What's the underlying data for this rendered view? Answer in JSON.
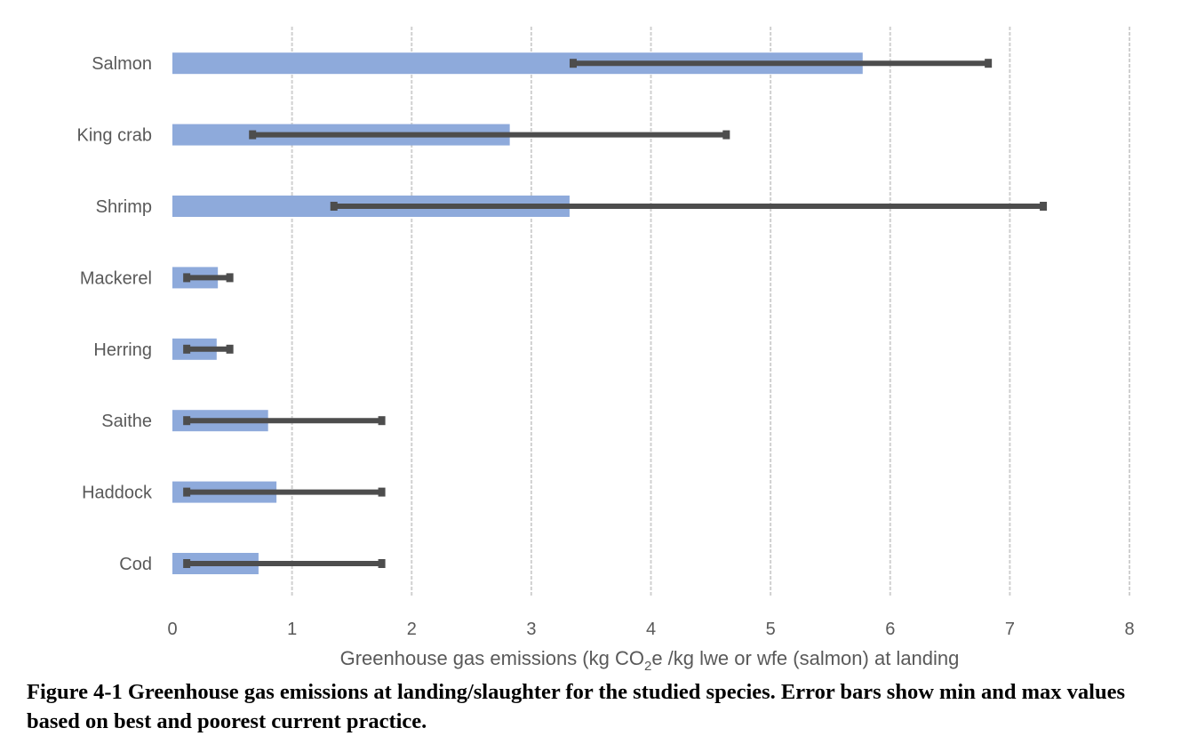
{
  "chart_data": {
    "type": "bar",
    "orientation": "horizontal",
    "categories": [
      "Salmon",
      "King crab",
      "Shrimp",
      "Mackerel",
      "Herring",
      "Saithe",
      "Haddock",
      "Cod"
    ],
    "values": [
      5.77,
      2.82,
      3.32,
      0.38,
      0.37,
      0.8,
      0.87,
      0.72
    ],
    "error_min": [
      3.35,
      0.67,
      1.35,
      0.12,
      0.12,
      0.12,
      0.12,
      0.12
    ],
    "error_max": [
      6.82,
      4.63,
      7.28,
      0.48,
      0.48,
      1.75,
      1.75,
      1.75
    ],
    "xlabel_prefix": "Greenhouse gas emissions (kg CO",
    "xlabel_subscript": "2",
    "xlabel_suffix": "e /kg lwe or wfe (salmon) at landing",
    "xlim": [
      0,
      8
    ],
    "xticks": [
      "0",
      "1",
      "2",
      "3",
      "4",
      "5",
      "6",
      "7",
      "8"
    ],
    "grid": "vertical, dashed",
    "legend": "none",
    "bar_color": "#8eaadb",
    "error_bar_color": "#4d4d4d",
    "grid_color": "#d0d0d0"
  },
  "caption": "Figure 4-1 Greenhouse gas emissions at landing/slaughter for the studied species. Error bars show min and max values based on best and poorest current practice."
}
